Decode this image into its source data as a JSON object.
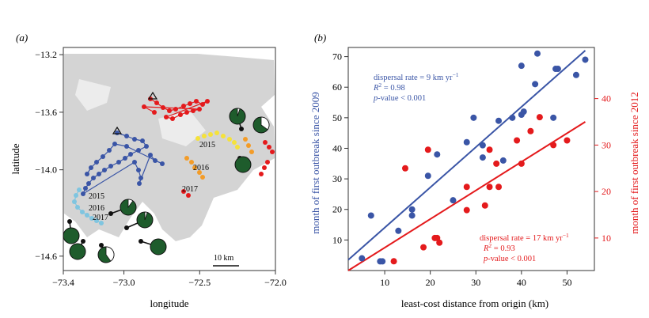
{
  "panel_a": {
    "label": "(a)",
    "chart_data": {
      "type": "map",
      "xlabel": "longitude",
      "ylabel": "latitude",
      "xlim": [
        -73.4,
        -72.0
      ],
      "ylim": [
        -14.7,
        -13.15
      ],
      "xticks": [
        -73.4,
        -73.0,
        -72.5,
        -72.0
      ],
      "xtick_labels": [
        "−73.4",
        "−73.0",
        "−72.5",
        "−72.0"
      ],
      "yticks": [
        -13.2,
        -13.6,
        -14.0,
        -14.6
      ],
      "ytick_labels": [
        "−13.2",
        "−13.6",
        "−14.0",
        "−14.6"
      ],
      "scale_bar": "10 km",
      "year_labels": [
        "2015",
        "2016",
        "2017",
        "2015",
        "2016",
        "2017"
      ],
      "colors": {
        "terrain": "#cfcfcf",
        "blue": "#3a55a6",
        "lightblue": "#7fc5e0",
        "red": "#e41a1c",
        "orange": "#f39c28",
        "yellow": "#f5e23a",
        "pie_green": "#1e5c2c"
      }
    }
  },
  "panel_b": {
    "label": "(b)",
    "chart_data": {
      "type": "scatter",
      "xlabel": "least-cost distance from origin (km)",
      "ylabel_left": "month of first outbreak since 2009",
      "ylabel_right": "month of first outbreak since 2012",
      "xlim": [
        2,
        56
      ],
      "ylim_left": [
        0,
        73
      ],
      "ylim_right": [
        3,
        51
      ],
      "xticks": [
        10,
        20,
        30,
        40,
        50
      ],
      "yticks_left": [
        10,
        20,
        30,
        40,
        50,
        60,
        70
      ],
      "yticks_right": [
        10,
        20,
        30,
        40
      ],
      "series": [
        {
          "color": "#3a55a6",
          "axis": "left",
          "points": [
            [
              5,
              4
            ],
            [
              7,
              18
            ],
            [
              9,
              3
            ],
            [
              9.5,
              3
            ],
            [
              13,
              13
            ],
            [
              16,
              20
            ],
            [
              16,
              18
            ],
            [
              19.5,
              31
            ],
            [
              21.5,
              38
            ],
            [
              25,
              23
            ],
            [
              28,
              42
            ],
            [
              29.5,
              50
            ],
            [
              31.5,
              37
            ],
            [
              31.5,
              41
            ],
            [
              35,
              49
            ],
            [
              36,
              36
            ],
            [
              38,
              50
            ],
            [
              40,
              67
            ],
            [
              40,
              51
            ],
            [
              40.5,
              52
            ],
            [
              43,
              61
            ],
            [
              43.5,
              71
            ],
            [
              47,
              50
            ],
            [
              47.5,
              66
            ],
            [
              48,
              66
            ],
            [
              52,
              64
            ],
            [
              54,
              69
            ]
          ],
          "fit": [
            [
              2,
              3.5
            ],
            [
              54,
              72
            ]
          ]
        },
        {
          "color": "#e41a1c",
          "axis": "right",
          "points": [
            [
              12,
              5
            ],
            [
              14.5,
              25
            ],
            [
              18.5,
              8
            ],
            [
              19.5,
              29
            ],
            [
              21,
              10
            ],
            [
              22,
              9
            ],
            [
              21.5,
              10
            ],
            [
              28,
              21
            ],
            [
              28,
              16
            ],
            [
              32,
              17
            ],
            [
              33,
              29
            ],
            [
              33,
              21
            ],
            [
              34.5,
              26
            ],
            [
              35,
              21
            ],
            [
              39,
              31
            ],
            [
              40,
              26
            ],
            [
              42,
              33
            ],
            [
              44,
              36
            ],
            [
              47,
              30
            ],
            [
              50,
              31
            ]
          ],
          "fit": [
            [
              2,
              3
            ],
            [
              54,
              35
            ]
          ]
        }
      ],
      "annotations": {
        "blue_rate": "dispersal rate = 9 km yr",
        "blue_r2": "R",
        "blue_r2_val": " = 0.98",
        "blue_p": "p",
        "blue_p_val": "-value < 0.001",
        "red_rate": "dispersal rate = 17 km yr",
        "red_r2": "R",
        "red_r2_val": " = 0.93",
        "red_p": "p",
        "red_p_val": "-value < 0.001",
        "sup_minus1": "−1",
        "sup_2": "2"
      }
    }
  }
}
